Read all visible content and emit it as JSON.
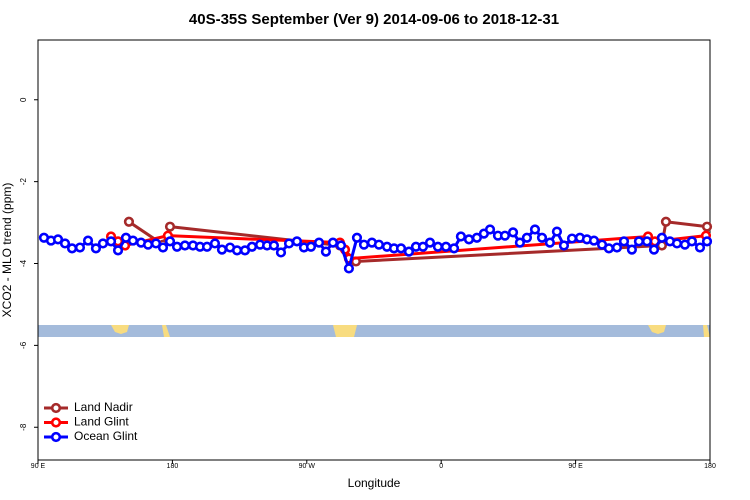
{
  "chart_data": {
    "type": "line",
    "title": "40S-35S September (Ver 9)   2014-09-06 to 2018-12-31",
    "x_label": "Longitude",
    "y_label": "XCO2 - MLO trend (ppm)",
    "xlim": [
      90,
      540
    ],
    "ylim": [
      -8.8,
      1.46
    ],
    "xticks": [
      {
        "value": 90,
        "label": "90 E"
      },
      180,
      {
        "value": 270,
        "label": "90 W"
      },
      {
        "value": 360,
        "label": "0"
      },
      {
        "value": 450,
        "label": "90 E"
      },
      {
        "value": 540,
        "label": "180"
      }
    ],
    "yticks": [
      0,
      -2,
      -4,
      -6,
      -8
    ],
    "legend": "bottom-left",
    "series": [
      {
        "name": "Land Nadir",
        "color": "#a52a2a",
        "x": [
          150.9,
          173.7,
          178.4,
          292.2,
          302.9,
          507.8,
          510.5,
          538
        ],
        "values": [
          -2.98,
          -3.54,
          -3.1,
          -3.56,
          -3.95,
          -3.56,
          -2.98,
          -3.1
        ]
      },
      {
        "name": "Land Glint",
        "color": "#ff0000",
        "x": [
          138.9,
          143.6,
          148.3,
          177,
          292.2,
          295.6,
          298.2,
          498.5,
          503.1,
          537.3
        ],
        "values": [
          -3.34,
          -3.46,
          -3.56,
          -3.32,
          -3.49,
          -3.66,
          -3.88,
          -3.34,
          -3.46,
          -3.32
        ]
      },
      {
        "name": "Ocean Glint",
        "color": "#0000ff",
        "x": [
          94,
          98.7,
          103.4,
          108.1,
          112.8,
          118.1,
          123.5,
          128.8,
          133.5,
          138.9,
          143.6,
          148.9,
          153.6,
          159,
          163.7,
          169,
          173.7,
          178.4,
          183.1,
          188.4,
          193.8,
          198.5,
          203.2,
          208.5,
          213.2,
          218.6,
          223.3,
          228.6,
          233.3,
          238.7,
          243.4,
          248,
          252.7,
          258.1,
          263.4,
          268.1,
          272.8,
          278.2,
          282.8,
          287.5,
          292.9,
          298.2,
          303.6,
          308.3,
          313.6,
          318.3,
          323.7,
          328.4,
          333.1,
          338.4,
          343.1,
          347.8,
          352.5,
          357.8,
          363.2,
          368.6,
          373.2,
          378.6,
          383.9,
          388.6,
          392.7,
          398,
          402.7,
          408.1,
          412.7,
          417.4,
          422.8,
          427.5,
          432.8,
          437.5,
          442.2,
          447.6,
          452.9,
          457.6,
          462.3,
          467.7,
          472.3,
          477.7,
          482.4,
          487.7,
          492.4,
          497.8,
          502.5,
          507.8,
          513.2,
          517.9,
          523.2,
          527.9,
          533.3,
          538
        ],
        "values": [
          -3.37,
          -3.44,
          -3.41,
          -3.51,
          -3.63,
          -3.61,
          -3.44,
          -3.63,
          -3.51,
          -3.46,
          -3.68,
          -3.37,
          -3.44,
          -3.49,
          -3.54,
          -3.51,
          -3.61,
          -3.46,
          -3.59,
          -3.56,
          -3.56,
          -3.59,
          -3.59,
          -3.51,
          -3.66,
          -3.61,
          -3.68,
          -3.68,
          -3.59,
          -3.54,
          -3.56,
          -3.56,
          -3.73,
          -3.51,
          -3.46,
          -3.61,
          -3.59,
          -3.49,
          -3.71,
          -3.49,
          -3.56,
          -4.12,
          -3.37,
          -3.54,
          -3.49,
          -3.54,
          -3.59,
          -3.63,
          -3.63,
          -3.71,
          -3.59,
          -3.59,
          -3.49,
          -3.59,
          -3.59,
          -3.63,
          -3.34,
          -3.41,
          -3.37,
          -3.27,
          -3.17,
          -3.32,
          -3.32,
          -3.24,
          -3.49,
          -3.37,
          -3.17,
          -3.37,
          -3.49,
          -3.22,
          -3.56,
          -3.39,
          -3.37,
          -3.41,
          -3.44,
          -3.54,
          -3.63,
          -3.61,
          -3.46,
          -3.66,
          -3.46,
          -3.46,
          -3.66,
          -3.37,
          -3.46,
          -3.51,
          -3.54,
          -3.46,
          -3.61,
          -3.46
        ]
      }
    ]
  }
}
